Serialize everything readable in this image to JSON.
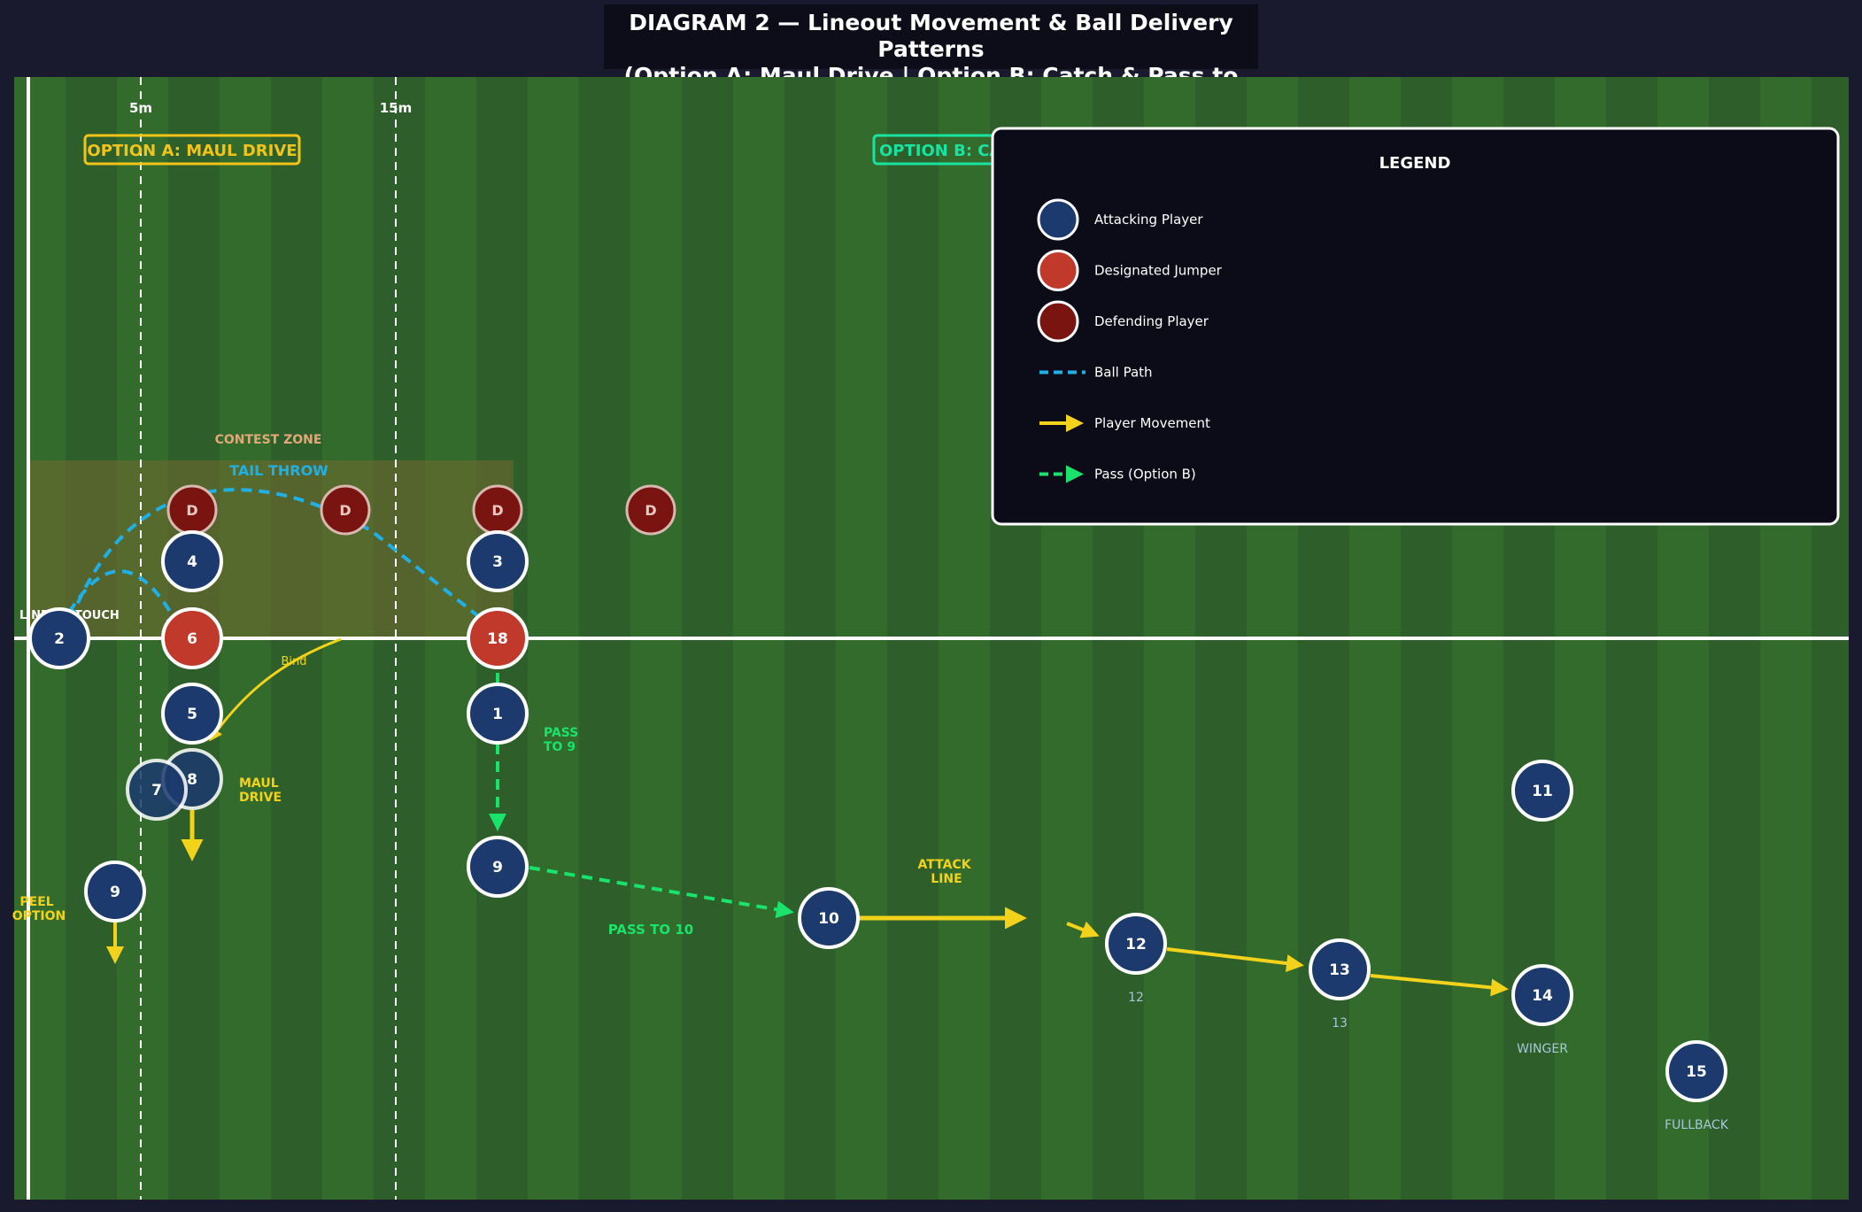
{
  "title": {
    "line1": "DIAGRAM 2 — Lineout Movement & Ball Delivery Patterns",
    "line2": "(Option A: Maul Drive  |  Option B: Catch & Pass to Backs)"
  },
  "field_labels": {
    "five_m": "5m",
    "fifteen_m": "15m",
    "option_a": "OPTION A: MAUL DRIVE",
    "option_b": "OPTION B: CA",
    "contest_zone": "CONTEST ZONE",
    "tail_throw": "TAIL THROW",
    "line_of_touch": "LINE OF TOUCH",
    "bind": "Bind",
    "maul_drive": [
      "MAUL",
      "DRIVE"
    ],
    "peel_option": [
      "PEEL",
      "OPTION"
    ],
    "pass_to_9": [
      "PASS",
      "TO 9"
    ],
    "pass_to_10": "PASS TO 10",
    "attack_line": [
      "ATTACK",
      "LINE"
    ]
  },
  "players": [
    {
      "id": "hooker",
      "label": "2",
      "type": "attacking"
    },
    {
      "id": "front-4",
      "label": "4",
      "type": "attacking"
    },
    {
      "id": "jumper-6",
      "label": "6",
      "type": "jumper"
    },
    {
      "id": "lifter-5",
      "label": "5",
      "type": "attacking"
    },
    {
      "id": "support-8",
      "label": "8",
      "type": "attacking"
    },
    {
      "id": "support-7",
      "label": "7",
      "type": "attacking"
    },
    {
      "id": "peel-9",
      "label": "9",
      "type": "attacking"
    },
    {
      "id": "lifter-3",
      "label": "3",
      "type": "attacking"
    },
    {
      "id": "jumper-18",
      "label": "18",
      "type": "jumper"
    },
    {
      "id": "prop-1",
      "label": "1",
      "type": "attacking"
    },
    {
      "id": "scrumhalf-9",
      "label": "9",
      "type": "attacking"
    },
    {
      "id": "flyhalf-10",
      "label": "10",
      "type": "attacking"
    },
    {
      "id": "wing-11",
      "label": "11",
      "type": "attacking"
    },
    {
      "id": "centre-12",
      "label": "12",
      "type": "attacking",
      "caption": "12"
    },
    {
      "id": "centre-13",
      "label": "13",
      "type": "attacking",
      "caption": "13"
    },
    {
      "id": "wing-14",
      "label": "14",
      "type": "attacking",
      "caption": "WINGER"
    },
    {
      "id": "fullback-15",
      "label": "15",
      "type": "attacking",
      "caption": "FULLBACK"
    }
  ],
  "defenders": [
    "D",
    "D",
    "D",
    "D"
  ],
  "legend": {
    "title": "LEGEND",
    "items": [
      {
        "label": "Attacking Player",
        "kind": "attacking"
      },
      {
        "label": "Designated Jumper",
        "kind": "jumper"
      },
      {
        "label": "Defending Player",
        "kind": "defending"
      },
      {
        "label": "Ball Path",
        "kind": "ball"
      },
      {
        "label": "Player Movement",
        "kind": "movement"
      },
      {
        "label": "Pass (Option B)",
        "kind": "pass"
      }
    ]
  },
  "colors": {
    "attacking": "#1c3a6e",
    "jumper": "#c0392b",
    "defending": "#7a1410",
    "ball_path": "#1fb0e6",
    "movement": "#f2d21b",
    "pass": "#19e36b",
    "option_a": "#f2c318",
    "option_b": "#19e3a0",
    "contest": "#e3a878"
  }
}
